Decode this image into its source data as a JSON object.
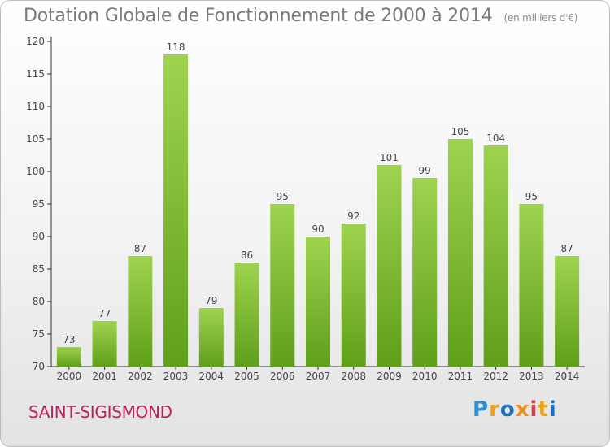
{
  "chart_data": {
    "type": "bar",
    "title": "Dotation Globale de Fonctionnement de 2000 à 2014",
    "unit_label": "(en milliers d'€)",
    "categories": [
      "2000",
      "2001",
      "2002",
      "2003",
      "2004",
      "2005",
      "2006",
      "2007",
      "2008",
      "2009",
      "2010",
      "2011",
      "2012",
      "2013",
      "2014"
    ],
    "values": [
      73,
      77,
      87,
      118,
      79,
      86,
      95,
      90,
      92,
      101,
      99,
      105,
      104,
      95,
      87
    ],
    "ylim": [
      70,
      120
    ],
    "yticks": [
      70,
      75,
      80,
      85,
      90,
      95,
      100,
      105,
      110,
      115,
      120
    ],
    "grid": false,
    "bar_color": "#7cc032"
  },
  "footer": {
    "commune": "SAINT-SIGISMOND",
    "logo": [
      "P",
      "r",
      "o",
      "x",
      "i",
      "t",
      "i"
    ]
  }
}
